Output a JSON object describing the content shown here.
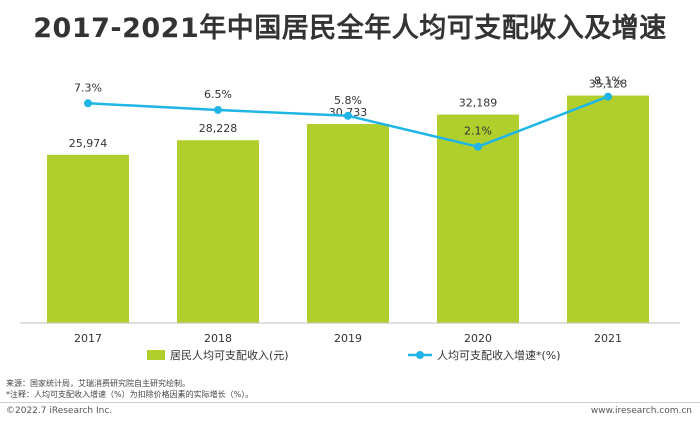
{
  "chart_data": {
    "type": "bar+line",
    "title": "2017-2021年中国居民全年人均可支配收入及增速",
    "categories": [
      "2017",
      "2018",
      "2019",
      "2020",
      "2021"
    ],
    "series": [
      {
        "name": "居民人均可支配收入(元)",
        "type": "bar",
        "color": "#b0cf2d",
        "values": [
          25974,
          28228,
          30733,
          32189,
          35128
        ],
        "labels": [
          "25,974",
          "28,228",
          "30,733",
          "32,189",
          "35,128"
        ]
      },
      {
        "name": "人均可支配收入增速*(%)",
        "type": "line",
        "color": "#1fb5e6",
        "values": [
          7.3,
          6.5,
          5.8,
          2.1,
          8.1
        ],
        "labels": [
          "7.3%",
          "6.5%",
          "5.8%",
          "2.1%",
          "8.1%"
        ]
      }
    ],
    "bar_axis_range": [
      0,
      40000
    ],
    "line_axis_range": [
      -19,
      12
    ],
    "grid": false,
    "legend_position": "bottom"
  },
  "footer": {
    "source": "来源：国家统计局，艾瑞消费研究院自主研究绘制。",
    "note": "*注释：人均可支配收入增速（%）为扣除价格因素的实际增长（%）。",
    "copyright": "©2022.7 iResearch Inc.",
    "website": "www.iresearch.com.cn"
  }
}
